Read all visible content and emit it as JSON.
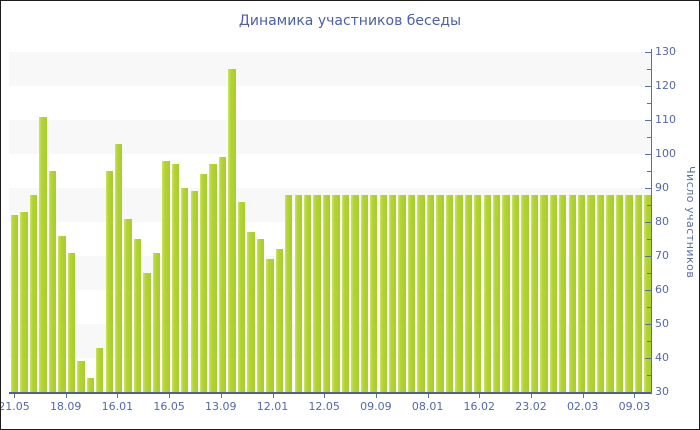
{
  "title": "Динамика участников беседы",
  "chart_data": {
    "type": "bar",
    "title": "Динамика участников беседы",
    "ylabel": "Число участников",
    "xlabel": "",
    "ylim": [
      30,
      130
    ],
    "y_tick_step": 10,
    "y_minor_tick_step": 5,
    "y_tick_labels": [
      "30",
      "40",
      "50",
      "60",
      "70",
      "80",
      "90",
      "100",
      "110",
      "120",
      "130"
    ],
    "x_tick_labels": [
      "21.05",
      "18.09",
      "16.01",
      "16.05",
      "13.09",
      "12.01",
      "12.05",
      "09.09",
      "08.01",
      "16.02",
      "23.02",
      "02.03",
      "09.03"
    ],
    "legend": "none",
    "grid": "horizontal-bands",
    "values": [
      82,
      83,
      88,
      111,
      95,
      76,
      71,
      39,
      34,
      43,
      95,
      103,
      81,
      75,
      65,
      71,
      98,
      97,
      90,
      89,
      94,
      97,
      99,
      125,
      86,
      77,
      75,
      69,
      72,
      88,
      88,
      88,
      88,
      88,
      88,
      88,
      88,
      88,
      88,
      88,
      88,
      88,
      88,
      88,
      88,
      88,
      88,
      88,
      88,
      88,
      88,
      88,
      88,
      88,
      88,
      88,
      88,
      88,
      88,
      88,
      88,
      88,
      88,
      88,
      88,
      88,
      88,
      88
    ],
    "colors": {
      "bar": "#b3d334",
      "bar_edge_light": "#cde364",
      "bar_edge_dark": "#a9cd2e",
      "axis": "#5b6fa6",
      "label": "#5468a8",
      "title": "#4c61a3",
      "band": "#f8f8f8",
      "background": "#ffffff"
    }
  }
}
